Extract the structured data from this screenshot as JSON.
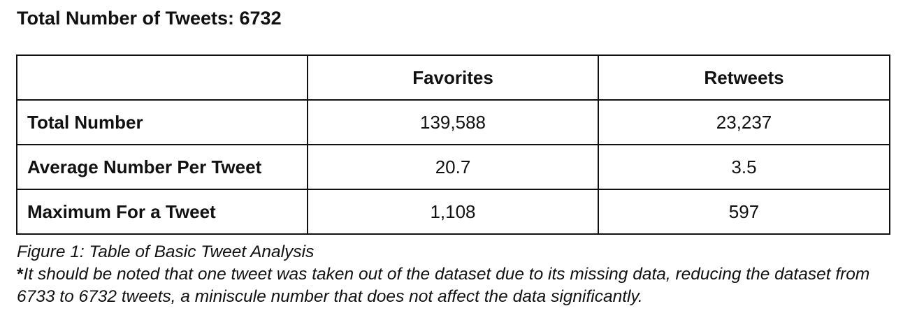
{
  "heading": "Total Number of Tweets: 6732",
  "table": {
    "columns": [
      "",
      "Favorites",
      "Retweets"
    ],
    "rows": [
      {
        "label": "Total Number",
        "favorites": "139,588",
        "retweets": "23,237"
      },
      {
        "label": "Average Number Per Tweet",
        "favorites": "20.7",
        "retweets": "3.5"
      },
      {
        "label": "Maximum For a Tweet",
        "favorites": "1,108",
        "retweets": "597"
      }
    ]
  },
  "caption": "Figure 1: Table of Basic Tweet Analysis",
  "note": {
    "asterisk": "*",
    "text": "It should be noted that one tweet was taken out of the dataset due to its missing data, reducing the dataset from 6733 to 6732 tweets, a miniscule number that does not affect the data significantly."
  }
}
